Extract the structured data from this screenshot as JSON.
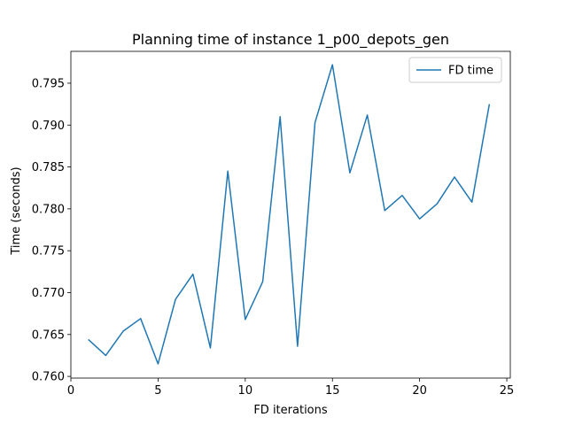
{
  "chart_data": {
    "type": "line",
    "title": "Planning time of instance 1_p00_depots_gen",
    "xlabel": "FD iterations",
    "ylabel": "Time (seconds)",
    "xlim": [
      0,
      25.2
    ],
    "ylim": [
      0.7598,
      0.7988
    ],
    "xticks": [
      0,
      5,
      10,
      15,
      20,
      25
    ],
    "xtick_labels": [
      "0",
      "5",
      "10",
      "15",
      "20",
      "25"
    ],
    "yticks": [
      0.76,
      0.765,
      0.77,
      0.775,
      0.78,
      0.785,
      0.79,
      0.795
    ],
    "ytick_labels": [
      "0.760",
      "0.765",
      "0.770",
      "0.775",
      "0.780",
      "0.785",
      "0.790",
      "0.795"
    ],
    "grid": false,
    "legend_position": "top-right",
    "series": [
      {
        "name": "FD time",
        "color": "#1f77b4",
        "x": [
          1,
          2,
          3,
          4,
          5,
          6,
          7,
          8,
          9,
          10,
          11,
          12,
          13,
          14,
          15,
          16,
          17,
          18,
          19,
          20,
          21,
          22,
          23,
          24
        ],
        "y": [
          0.7644,
          0.7625,
          0.7654,
          0.7669,
          0.7615,
          0.7692,
          0.7722,
          0.7634,
          0.7845,
          0.7668,
          0.7713,
          0.791,
          0.7636,
          0.7903,
          0.7972,
          0.7843,
          0.7912,
          0.7798,
          0.7816,
          0.7788,
          0.7806,
          0.7838,
          0.7808,
          0.7925
        ]
      }
    ]
  }
}
